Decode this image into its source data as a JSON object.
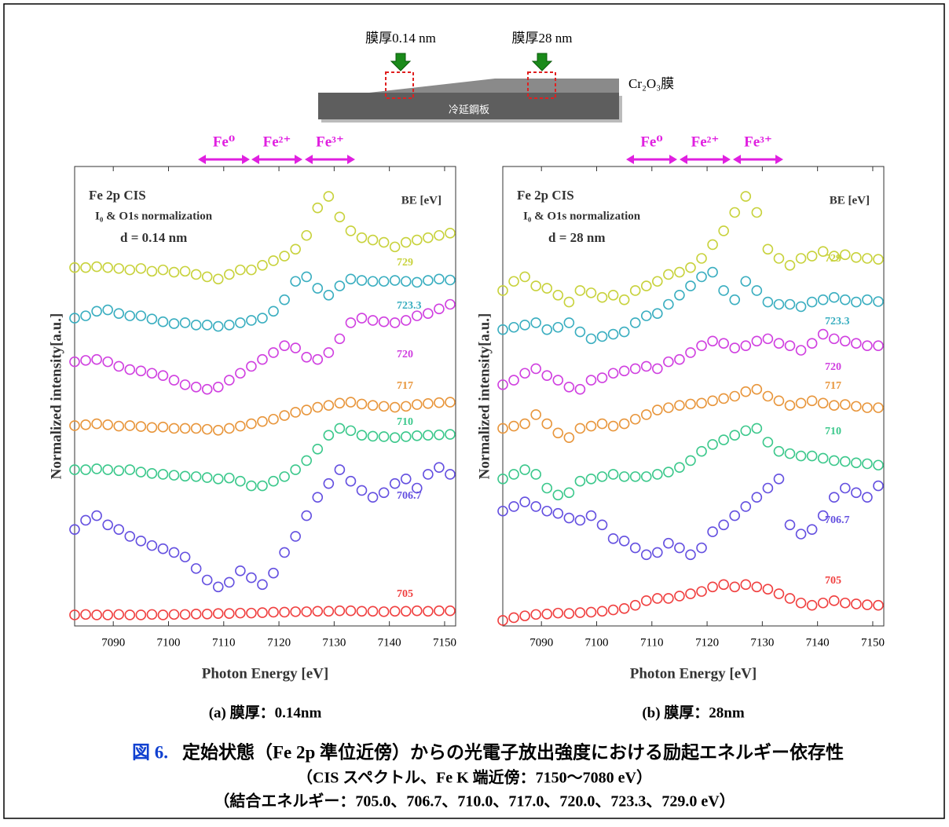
{
  "diagram": {
    "thin_label": "膜厚0.14 nm",
    "thick_label": "膜厚28 nm",
    "film_label": "Cr₂O₃膜",
    "substrate_label": "冷延鋼板"
  },
  "chart_data": [
    {
      "type": "scatter",
      "title": "(a) 膜厚：0.14nm",
      "xlabel": "Photon Energy [eV]",
      "ylabel": "Normalized intensity[a.u.]",
      "annotations": [
        "Fe 2p CIS",
        "I₀ & O1s normalization",
        "d = 0.14 nm",
        "BE [eV]"
      ],
      "regions": [
        "Fe⁰",
        "Fe²⁺",
        "Fe³⁺"
      ],
      "xlim": [
        7083,
        7152
      ],
      "ylim": [
        0,
        100
      ],
      "xticks": [
        7090,
        7100,
        7110,
        7120,
        7130,
        7140,
        7150
      ],
      "x": [
        7083,
        7085,
        7087,
        7089,
        7091,
        7093,
        7095,
        7097,
        7099,
        7101,
        7103,
        7105,
        7107,
        7109,
        7111,
        7113,
        7115,
        7117,
        7119,
        7121,
        7123,
        7125,
        7127,
        7129,
        7131,
        7133,
        7135,
        7137,
        7139,
        7141,
        7143,
        7145,
        7147,
        7149,
        7151
      ],
      "series": [
        {
          "name": "729",
          "color": "#c8d23c",
          "values": [
            78,
            78,
            78.2,
            78,
            77.8,
            77.5,
            77.8,
            77.2,
            77.5,
            77,
            77.2,
            76.5,
            76,
            75.5,
            76.5,
            77.5,
            77.5,
            78.5,
            79.5,
            80.5,
            82,
            85,
            91,
            93.5,
            89,
            86,
            84.5,
            84,
            83.5,
            82.5,
            83.5,
            84,
            84.5,
            85,
            85.5
          ]
        },
        {
          "name": "723.3",
          "color": "#3aaec0",
          "values": [
            67,
            67.5,
            68.5,
            68.8,
            68,
            67.5,
            67.5,
            66.8,
            66.2,
            65.8,
            66,
            65.5,
            65.5,
            65.2,
            65.5,
            66,
            66.5,
            67,
            68.5,
            71,
            75,
            76,
            73.5,
            72,
            74,
            75.5,
            75.2,
            75,
            75,
            75.2,
            75,
            74.8,
            75.2,
            75.5,
            75.3
          ]
        },
        {
          "name": "720",
          "color": "#d040e0",
          "values": [
            57.5,
            57.8,
            58,
            57.5,
            56.5,
            55.8,
            55.5,
            55,
            54.5,
            53.5,
            52.5,
            52,
            51.5,
            52,
            53.5,
            55,
            56.5,
            58,
            59.5,
            61,
            60.5,
            58.5,
            58,
            59.5,
            62.5,
            66,
            67,
            66.5,
            66.2,
            66,
            66.5,
            67.5,
            68,
            69,
            70
          ]
        },
        {
          "name": "717",
          "color": "#e8963c",
          "values": [
            43.6,
            43.8,
            44,
            43.8,
            43.5,
            43.6,
            43.4,
            43.2,
            43.3,
            43,
            43,
            43,
            42.8,
            42.6,
            43,
            43.5,
            44,
            44.5,
            45,
            45.8,
            46.5,
            47,
            47.6,
            48,
            48.5,
            48.7,
            48.3,
            48,
            47.8,
            47.6,
            47.8,
            48.2,
            48.4,
            48.6,
            48.7
          ]
        },
        {
          "name": "710",
          "color": "#3cc88c",
          "values": [
            34,
            34,
            34.2,
            34,
            33.8,
            34,
            33.5,
            33.2,
            33,
            32.8,
            32.6,
            32.5,
            32.3,
            32,
            32.2,
            31.5,
            30.5,
            30.5,
            31.5,
            32.5,
            34,
            36,
            38.5,
            41.5,
            43,
            42.5,
            41.5,
            41.3,
            41.2,
            41,
            41.2,
            41.4,
            41.5,
            41.6,
            41.7
          ]
        },
        {
          "name": "706.7",
          "color": "#6450e0",
          "values": [
            21,
            23,
            24,
            22,
            21,
            19.5,
            18.5,
            17.5,
            16.8,
            16,
            15,
            12.5,
            10,
            8.5,
            9.5,
            12,
            10.5,
            9,
            11.5,
            16,
            19.5,
            24,
            28,
            31,
            34,
            31.5,
            29.5,
            28,
            29,
            31,
            32,
            30,
            33,
            34.5,
            33
          ]
        },
        {
          "name": "705",
          "color": "#f04040",
          "values": [
            2.4,
            2.5,
            2.4,
            2.4,
            2.5,
            2.4,
            2.4,
            2.5,
            2.4,
            2.5,
            2.5,
            2.6,
            2.6,
            2.7,
            2.7,
            2.8,
            2.8,
            2.9,
            3,
            3,
            3.1,
            3.1,
            3.2,
            3.2,
            3.3,
            3.3,
            3.2,
            3.2,
            3.1,
            3.2,
            3.2,
            3.3,
            3.2,
            3.3,
            3.3
          ]
        }
      ]
    },
    {
      "type": "scatter",
      "title": "(b) 膜厚：28nm",
      "xlabel": "Photon Energy [eV]",
      "ylabel": "Normalized intensity[a.u.]",
      "annotations": [
        "Fe 2p CIS",
        "I₀ & O1s normalization",
        "d = 28 nm",
        "BE [eV]"
      ],
      "regions": [
        "Fe⁰",
        "Fe²⁺",
        "Fe³⁺"
      ],
      "xlim": [
        7083,
        7152
      ],
      "ylim": [
        0,
        100
      ],
      "xticks": [
        7090,
        7100,
        7110,
        7120,
        7130,
        7140,
        7150
      ],
      "x": [
        7083,
        7085,
        7087,
        7089,
        7091,
        7093,
        7095,
        7097,
        7099,
        7101,
        7103,
        7105,
        7107,
        7109,
        7111,
        7113,
        7115,
        7117,
        7119,
        7121,
        7123,
        7125,
        7127,
        7129,
        7131,
        7133,
        7135,
        7137,
        7139,
        7141,
        7143,
        7145,
        7147,
        7149,
        7151
      ],
      "series": [
        {
          "name": "729",
          "color": "#c8d23c",
          "values": [
            73,
            75,
            76,
            74,
            73.5,
            72,
            70.5,
            73,
            72.5,
            71.5,
            72,
            71,
            73,
            74,
            75,
            76.5,
            77,
            78,
            80,
            83,
            86,
            90,
            93.5,
            90,
            82,
            80,
            78.5,
            80,
            80.5,
            81.5,
            80.5,
            80.8,
            80.2,
            80,
            79.8
          ]
        },
        {
          "name": "723.3",
          "color": "#3aaec0",
          "values": [
            64.5,
            65,
            65.5,
            66,
            64.5,
            65,
            66,
            64,
            62.5,
            63,
            63.5,
            64,
            66,
            67.5,
            68,
            70,
            72,
            74,
            76,
            77,
            73,
            71,
            75,
            73,
            70.5,
            70,
            70,
            69.5,
            70.5,
            71,
            71.5,
            71,
            70.5,
            71,
            70.6
          ]
        },
        {
          "name": "720",
          "color": "#d040e0",
          "values": [
            52.5,
            53.5,
            55,
            56,
            54.5,
            53.5,
            52,
            51.5,
            53.5,
            54,
            55,
            55.5,
            56,
            56.5,
            56,
            57.5,
            58,
            59.5,
            61,
            62,
            61.5,
            60.5,
            61,
            62,
            62.5,
            61.5,
            61,
            60,
            61.5,
            63.5,
            62.5,
            62,
            61.5,
            61,
            61
          ]
        },
        {
          "name": "717",
          "color": "#e8963c",
          "values": [
            43,
            43.5,
            44,
            46,
            44,
            42,
            41,
            43,
            43.5,
            44,
            43.5,
            44,
            45,
            46,
            47,
            47.5,
            48,
            48.3,
            48.5,
            49,
            49.5,
            50,
            51,
            51.5,
            50,
            49,
            48,
            48.5,
            49,
            48.5,
            48,
            48.2,
            47.8,
            47.5,
            47.5
          ]
        },
        {
          "name": "710",
          "color": "#3cc88c",
          "values": [
            32,
            33,
            34,
            33,
            30,
            28.5,
            29,
            31.5,
            32,
            32.5,
            33,
            32.5,
            32.5,
            32.5,
            33,
            33.5,
            34.5,
            36,
            38,
            39.5,
            40.5,
            41.5,
            42.5,
            43,
            40,
            38,
            37.5,
            37,
            37,
            36.5,
            36,
            35.8,
            35.5,
            35.3,
            35
          ]
        },
        {
          "name": "706.7",
          "color": "#6450e0",
          "values": [
            25,
            26,
            27,
            26,
            25,
            24.5,
            23.5,
            23,
            24,
            22,
            19,
            18.5,
            17,
            15.5,
            16,
            18,
            17,
            15.5,
            17,
            20.5,
            22,
            24,
            26,
            28,
            30,
            32,
            22,
            20,
            21,
            24,
            28,
            30,
            29,
            28,
            30.5
          ]
        },
        {
          "name": "705",
          "color": "#f04040",
          "values": [
            1.2,
            1.8,
            2.2,
            2.5,
            2.6,
            2.8,
            2.7,
            2.9,
            3,
            3.2,
            3.5,
            3.8,
            4.5,
            5.5,
            6,
            6,
            6.5,
            7,
            7.5,
            8.5,
            9,
            8.5,
            9,
            8.5,
            8,
            7,
            6,
            5,
            4.5,
            5,
            5.5,
            5,
            4.8,
            4.6,
            4.5
          ]
        }
      ]
    }
  ],
  "caption": {
    "number": "図 6.",
    "line1": "定始状態（Fe 2p 準位近傍）からの光電子放出強度における励起エネルギー依存性",
    "line2": "（CIS スペクトル、Fe K 端近傍：7150〜7080 eV）",
    "line3": "（結合エネルギー：705.0、706.7、710.0、717.0、720.0、723.3、729.0 eV）"
  }
}
